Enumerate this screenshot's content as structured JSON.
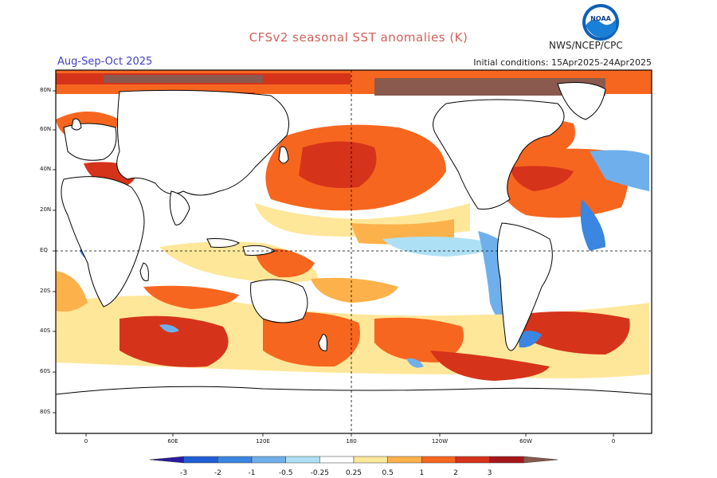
{
  "header": {
    "title": "CFSv2 seasonal SST anomalies (K)",
    "season": "Aug-Sep-Oct 2025",
    "initial_conditions": "Initial conditions: 15Apr2025-24Apr2025",
    "agency": "NWS/NCEP/CPC",
    "logo_text": "NOAA"
  },
  "map": {
    "lat_labels": [
      "80N",
      "60N",
      "40N",
      "20N",
      "EQ",
      "20S",
      "40S",
      "60S",
      "80S"
    ],
    "lon_labels": [
      "0",
      "60E",
      "120E",
      "180",
      "120W",
      "60W",
      "0"
    ]
  },
  "colorbar": {
    "labels": [
      "-3",
      "-2",
      "-1",
      "-0.5",
      "-0.25",
      "0.25",
      "0.5",
      "1",
      "2",
      "3"
    ],
    "colors": [
      "#2b1ba0",
      "#1f5fd6",
      "#3a86e0",
      "#6fb0ec",
      "#aee0f5",
      "#ffffff",
      "#ffe79a",
      "#fdb14b",
      "#f7661f",
      "#d6331b",
      "#a6171b",
      "#8a5a4e"
    ]
  },
  "palette": {
    "warm_light": "#ffe79a",
    "warm_mid": "#fdb14b",
    "warm": "#f7661f",
    "hot": "#d6331b",
    "very_hot": "#a6171b",
    "extreme": "#8a5a4e",
    "cool_light": "#aee0f5",
    "cool": "#6fb0ec",
    "cold": "#3a86e0"
  }
}
